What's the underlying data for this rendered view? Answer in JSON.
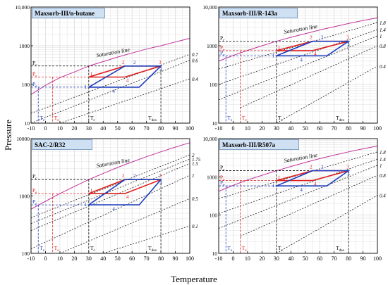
{
  "figure": {
    "y_label": "Pressure",
    "x_label": "Temperature"
  },
  "chart_data": [
    {
      "type": "line",
      "title": "Maxsorb-III/n-butane",
      "xlim": [
        -10,
        100
      ],
      "xticks": [
        "-10",
        "0",
        "10",
        "20",
        "30",
        "40",
        "50",
        "60",
        "70",
        "80",
        "90",
        "100"
      ],
      "ylim": [
        10,
        10000
      ],
      "yscale": "log",
      "yticks": [
        "10",
        "100",
        "1000",
        "10,000"
      ],
      "grid": true,
      "saturation_label": "Saturation line",
      "isostere_labels": [
        "0.7",
        "0.6",
        "0.4"
      ],
      "point_labels": [
        "1",
        "2",
        "3",
        "4"
      ],
      "ref_labels": {
        "p_c": "P",
        "p_e_red": "P",
        "p_e_blue": "P",
        "t_e_blue": "T",
        "t_e_red": "T",
        "t_c": "T",
        "t_des": "T"
      },
      "ref_subs": {
        "p_c": "c",
        "p_e_red": "e",
        "p_e_blue": "e",
        "t_e_blue": "e",
        "t_e_red": "e",
        "t_c": "c",
        "t_des": "des"
      },
      "saturation": {
        "x": [
          -10,
          0,
          10,
          20,
          30,
          40,
          50,
          60,
          70,
          80,
          90,
          100
        ],
        "y": [
          55,
          95,
          150,
          210,
          300,
          390,
          510,
          650,
          820,
          1000,
          1250,
          1550
        ]
      },
      "isosteres": [
        {
          "name": "0.7",
          "x": [
            -10,
            100
          ],
          "y": [
            18,
            600
          ]
        },
        {
          "name": "0.6",
          "x": [
            -10,
            100
          ],
          "y": [
            10,
            420
          ]
        },
        {
          "name": "0.4",
          "x": [
            10,
            100
          ],
          "y": [
            10,
            140
          ]
        }
      ],
      "red_cycle": {
        "x": [
          30,
          55,
          80,
          55,
          30
        ],
        "y": [
          155,
          300,
          300,
          155,
          155
        ]
      },
      "blue_cycle": {
        "x": [
          30,
          55,
          80,
          65,
          30
        ],
        "y": [
          85,
          300,
          300,
          85,
          85
        ]
      },
      "reference": {
        "p_c": 300,
        "p_e_red": 155,
        "p_e_blue": 85,
        "t_e_blue": -5,
        "t_e_red": 5,
        "t_c": 30,
        "t_des": 80
      }
    },
    {
      "type": "line",
      "title": "Maxsorb-III/R-143a",
      "xlim": [
        -10,
        100
      ],
      "xticks": [
        "-10",
        "0",
        "10",
        "20",
        "30",
        "40",
        "50",
        "60",
        "70",
        "80",
        "90",
        "100"
      ],
      "ylim": [
        10,
        10000
      ],
      "yscale": "log",
      "yticks": [
        "10",
        "100",
        "1000",
        "10,000"
      ],
      "grid": true,
      "saturation_label": "Saturation line",
      "isostere_labels": [
        "1.8",
        "1.4",
        "1",
        "0.8",
        "0.4"
      ],
      "point_labels": [
        "1",
        "2",
        "3",
        "4"
      ],
      "ref_labels": {
        "p_c": "P",
        "p_e_red": "P",
        "p_e_blue": "P",
        "t_e_blue": "T",
        "t_e_red": "T",
        "t_c": "T",
        "t_des": "T"
      },
      "ref_subs": {
        "p_c": "c",
        "p_e_red": "e",
        "p_e_blue": "e",
        "t_e_blue": "e",
        "t_e_red": "e",
        "t_c": "c",
        "t_des": "des"
      },
      "saturation": {
        "x": [
          -10,
          0,
          10,
          20,
          30,
          40,
          50,
          60,
          70,
          80,
          90,
          100
        ],
        "y": [
          400,
          560,
          760,
          1000,
          1300,
          1650,
          2050,
          2550,
          3100,
          3750,
          4500,
          5300
        ]
      },
      "isosteres": [
        {
          "name": "1.8",
          "x": [
            -10,
            100
          ],
          "y": [
            250,
            4000
          ]
        },
        {
          "name": "1.4",
          "x": [
            -10,
            100
          ],
          "y": [
            100,
            2600
          ]
        },
        {
          "name": "1",
          "x": [
            -10,
            100
          ],
          "y": [
            40,
            1800
          ]
        },
        {
          "name": "0.8",
          "x": [
            5,
            100
          ],
          "y": [
            25,
            1000
          ]
        },
        {
          "name": "0.4",
          "x": [
            30,
            100
          ],
          "y": [
            10,
            300
          ]
        }
      ],
      "red_cycle": {
        "x": [
          30,
          55,
          80,
          55,
          30
        ],
        "y": [
          750,
          1300,
          1300,
          750,
          750
        ]
      },
      "blue_cycle": {
        "x": [
          30,
          55,
          80,
          65,
          30
        ],
        "y": [
          550,
          1300,
          1300,
          550,
          550
        ]
      },
      "reference": {
        "p_c": 1300,
        "p_e_red": 750,
        "p_e_blue": 550,
        "t_e_blue": -5,
        "t_e_red": 5,
        "t_c": 30,
        "t_des": 80
      }
    },
    {
      "type": "line",
      "title": "SAC-2/R32",
      "xlim": [
        -10,
        100
      ],
      "xticks": [
        "-10",
        "0",
        "10",
        "20",
        "30",
        "40",
        "50",
        "60",
        "70",
        "80",
        "90",
        "100"
      ],
      "ylim": [
        100,
        10000
      ],
      "yscale": "log",
      "yticks": [
        "100",
        "1000",
        "10000"
      ],
      "grid": true,
      "saturation_label": "Saturation line",
      "isostere_labels": [
        "2",
        "1.75",
        "1.5",
        "1",
        "0.5",
        "0.1"
      ],
      "point_labels": [
        "1",
        "2",
        "3",
        "4"
      ],
      "ref_labels": {
        "p_c": "P",
        "p_e_red": "P",
        "p_e_blue": "P",
        "t_e_blue": "T",
        "t_e_red": "T",
        "t_c": "T",
        "t_des": "T"
      },
      "ref_subs": {
        "p_c": "c",
        "p_e_red": "e",
        "p_e_blue": "e",
        "t_e_blue": "e",
        "t_e_red": "e",
        "t_c": "c",
        "t_des": "des"
      },
      "saturation": {
        "x": [
          -10,
          0,
          10,
          20,
          30,
          40,
          50,
          60,
          70,
          80,
          90,
          100
        ],
        "y": [
          590,
          810,
          1100,
          1470,
          1930,
          2480,
          3140,
          3920,
          4840,
          5900,
          7100,
          8500
        ]
      },
      "isosteres": [
        {
          "name": "2",
          "x": [
            -10,
            100
          ],
          "y": [
            420,
            5200
          ]
        },
        {
          "name": "1.75",
          "x": [
            -10,
            100
          ],
          "y": [
            330,
            4400
          ]
        },
        {
          "name": "1.5",
          "x": [
            -10,
            100
          ],
          "y": [
            250,
            3700
          ]
        },
        {
          "name": "1",
          "x": [
            -10,
            100
          ],
          "y": [
            120,
            2300
          ]
        },
        {
          "name": "0.5",
          "x": [
            10,
            100
          ],
          "y": [
            100,
            900
          ]
        },
        {
          "name": "0.1",
          "x": [
            40,
            100
          ],
          "y": [
            100,
            300
          ]
        }
      ],
      "red_cycle": {
        "x": [
          30,
          55,
          80,
          55,
          30
        ],
        "y": [
          1100,
          1930,
          1930,
          1100,
          1100
        ]
      },
      "blue_cycle": {
        "x": [
          30,
          55,
          80,
          65,
          30
        ],
        "y": [
          700,
          1930,
          1930,
          700,
          700
        ]
      },
      "reference": {
        "p_c": 1930,
        "p_e_red": 1100,
        "p_e_blue": 700,
        "t_e_blue": -5,
        "t_e_red": 5,
        "t_c": 30,
        "t_des": 80
      }
    },
    {
      "type": "line",
      "title": "Maxsorb-III/R507a",
      "xlim": [
        -10,
        100
      ],
      "xticks": [
        "-10",
        "0",
        "10",
        "20",
        "30",
        "40",
        "50",
        "60",
        "70",
        "80",
        "90",
        "100"
      ],
      "ylim": [
        10,
        10000
      ],
      "yscale": "log",
      "yticks": [
        "10",
        "100",
        "1000",
        "10,000"
      ],
      "grid": true,
      "saturation_label": "Saturation line",
      "isostere_labels": [
        "1.8",
        "1.4",
        "1",
        "0.8",
        "0.4"
      ],
      "point_labels": [
        "1",
        "2",
        "3",
        "4"
      ],
      "ref_labels": {
        "p_c": "P",
        "p_e_red": "P",
        "p_e_blue": "P",
        "t_e_blue": "T",
        "t_e_red": "T",
        "t_c": "T",
        "t_des": "T"
      },
      "ref_subs": {
        "p_c": "c",
        "p_e_red": "e",
        "p_e_blue": "e",
        "t_e_blue": "e",
        "t_e_red": "e",
        "t_c": "c",
        "t_des": "des"
      },
      "saturation": {
        "x": [
          -10,
          0,
          10,
          20,
          30,
          40,
          50,
          60,
          70,
          80,
          90,
          100
        ],
        "y": [
          420,
          600,
          830,
          1100,
          1450,
          1870,
          2380,
          3000,
          3700,
          4500,
          5400,
          6400
        ]
      },
      "isosteres": [
        {
          "name": "1.8",
          "x": [
            -10,
            100
          ],
          "y": [
            270,
            4500
          ]
        },
        {
          "name": "1.4",
          "x": [
            -10,
            100
          ],
          "y": [
            110,
            2900
          ]
        },
        {
          "name": "1",
          "x": [
            -10,
            100
          ],
          "y": [
            45,
            2000
          ]
        },
        {
          "name": "0.8",
          "x": [
            5,
            100
          ],
          "y": [
            28,
            1100
          ]
        },
        {
          "name": "0.4",
          "x": [
            30,
            100
          ],
          "y": [
            10,
            330
          ]
        }
      ],
      "red_cycle": {
        "x": [
          30,
          55,
          80,
          55,
          30
        ],
        "y": [
          800,
          1450,
          1450,
          800,
          800
        ]
      },
      "blue_cycle": {
        "x": [
          30,
          55,
          80,
          65,
          30
        ],
        "y": [
          580,
          1450,
          1450,
          580,
          580
        ]
      },
      "reference": {
        "p_c": 1450,
        "p_e_red": 800,
        "p_e_blue": 580,
        "t_e_blue": -5,
        "t_e_red": 5,
        "t_c": 30,
        "t_des": 80
      }
    }
  ],
  "colors": {
    "saturation": "#c0329a",
    "red_cycle": "#e02020",
    "blue_cycle": "#1f3fbf",
    "isostere": "#222222",
    "grid": "#d8d8d8",
    "title_box": "#cfe0f3"
  }
}
